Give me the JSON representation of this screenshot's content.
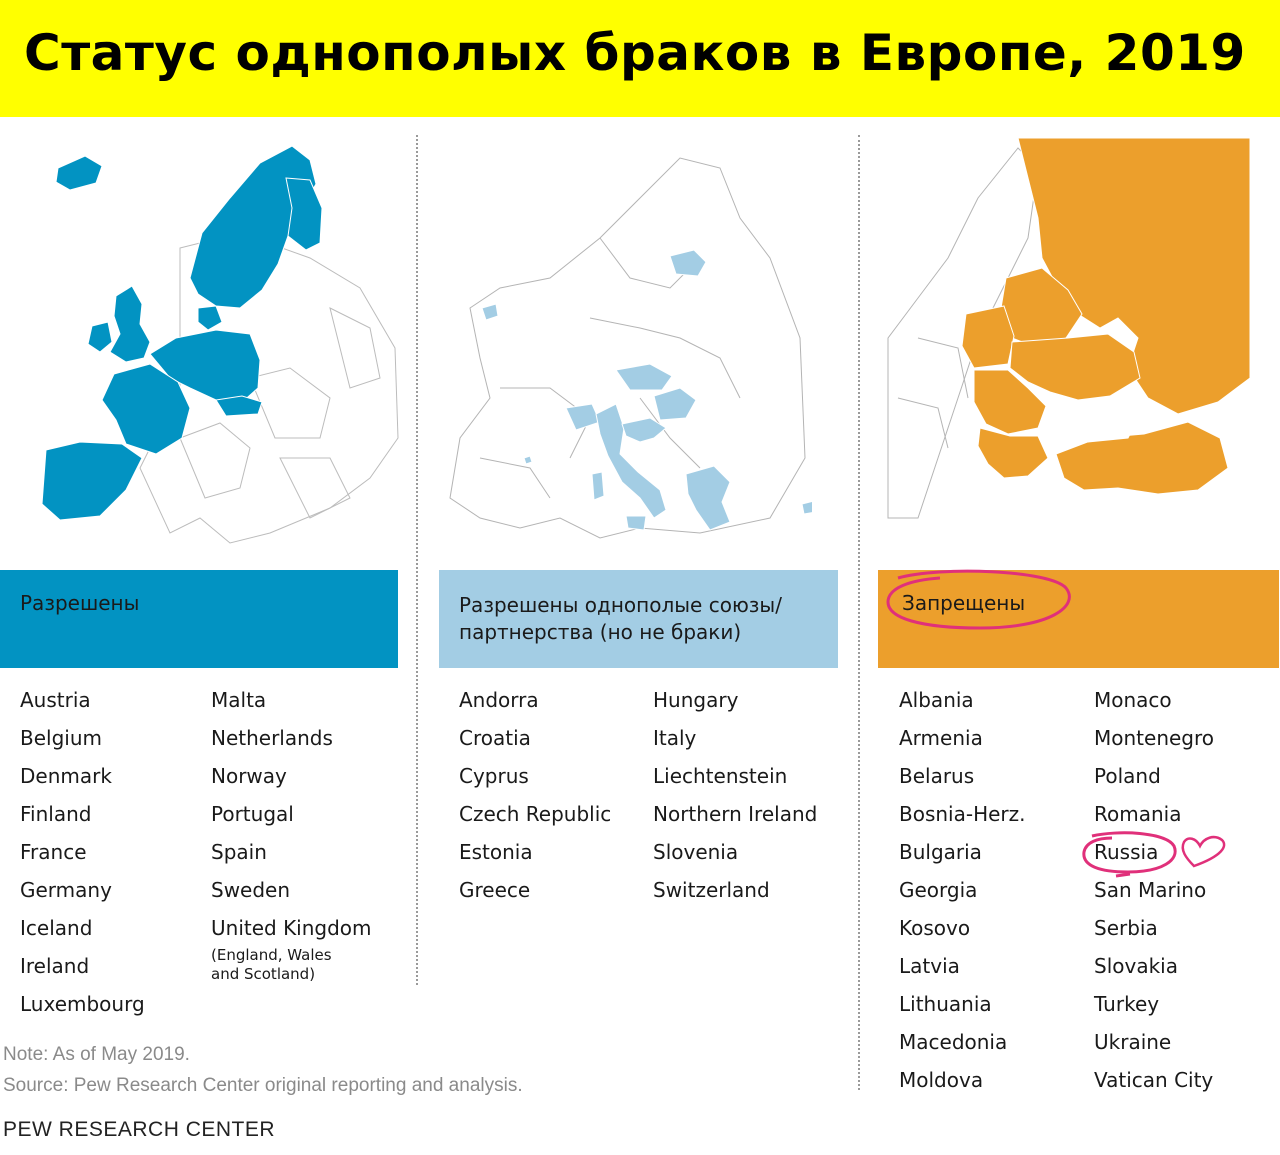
{
  "title": "Статус однополых браков в Европе, 2019",
  "colors": {
    "title_background": "#ffff00",
    "allowed": "#0293c2",
    "unions": "#a3cde4",
    "banned": "#ec9f2c",
    "annotation": "#e0307a"
  },
  "legend": {
    "allowed": "Разрешены",
    "unions_line1": "Разрешены однополые союзы/",
    "unions_line2": "партнерства (но не браки)",
    "banned": "Запрещены"
  },
  "columns": {
    "allowed": {
      "left": [
        "Austria",
        "Belgium",
        "Denmark",
        "Finland",
        "France",
        "Germany",
        "Iceland",
        "Ireland",
        "Luxembourg"
      ],
      "right": [
        "Malta",
        "Netherlands",
        "Norway",
        "Portugal",
        "Spain",
        "Sweden",
        "United Kingdom"
      ],
      "uk_note": "(England, Wales\nand Scotland)"
    },
    "unions": {
      "left": [
        "Andorra",
        "Croatia",
        "Cyprus",
        "Czech Republic",
        "Estonia",
        "Greece"
      ],
      "right": [
        "Hungary",
        "Italy",
        "Liechtenstein",
        "Northern Ireland",
        "Slovenia",
        "Switzerland"
      ]
    },
    "banned": {
      "left": [
        "Albania",
        "Armenia",
        "Belarus",
        "Bosnia-Herz.",
        "Bulgaria",
        "Georgia",
        "Kosovo",
        "Latvia",
        "Lithuania",
        "Macedonia",
        "Moldova"
      ],
      "right": [
        "Monaco",
        "Montenegro",
        "Poland",
        "Romania",
        "Russia",
        "San Marino",
        "Serbia",
        "Slovakia",
        "Turkey",
        "Ukraine",
        "Vatican City"
      ]
    }
  },
  "annotations": [
    "circle-around-zapreshcheny",
    "circle-around-russia",
    "heart-doodle"
  ],
  "footer": {
    "note": "Note: As of May 2019.",
    "source": "Source: Pew Research Center original reporting and analysis.",
    "org": "PEW RESEARCH CENTER"
  }
}
